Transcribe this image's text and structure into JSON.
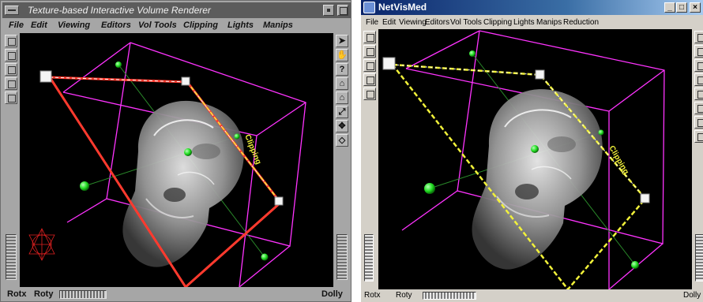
{
  "left_window": {
    "title": "Texture-based Interactive Volume Renderer",
    "menu": [
      "File",
      "Edit",
      "Viewing",
      "Editors",
      "Vol Tools",
      "Clipping",
      "Lights",
      "Manips"
    ],
    "clip_label": "Clipping",
    "logo_text": "",
    "bottom": {
      "rotx": "Rotx",
      "roty": "Roty",
      "dolly": "Dolly"
    },
    "right_tools": [
      "arrow-icon",
      "hand-icon",
      "help-icon",
      "home-icon",
      "set-home-icon",
      "view-all-icon",
      "seek-icon",
      "perspective-icon"
    ],
    "right_tool_glyphs": [
      "➤",
      "✋",
      "?",
      "⌂",
      "⌂",
      "⤢",
      "✥",
      "◇"
    ],
    "left_tools": [
      "list-icon",
      "copy-icon",
      "wave-icon",
      "grid-icon",
      "person-icon"
    ]
  },
  "right_window": {
    "title": "NetVisMed",
    "menu": [
      "File",
      "Edit",
      "Viewing",
      "Editors",
      "Vol Tools",
      "Clipping",
      "Lights",
      "Manips",
      "Reduction"
    ],
    "clip_label": "Clipping",
    "title_buttons": [
      "_",
      "□",
      "×"
    ],
    "bottom": {
      "rotx": "Rotx",
      "roty": "Roty",
      "dolly": "Dolly"
    }
  },
  "colors": {
    "box": "#ff33ff",
    "plane_left": "#ff3a2e",
    "plane_right": "#f2f23a",
    "handles": "#33ff33",
    "axis": "#2a8a2a"
  }
}
